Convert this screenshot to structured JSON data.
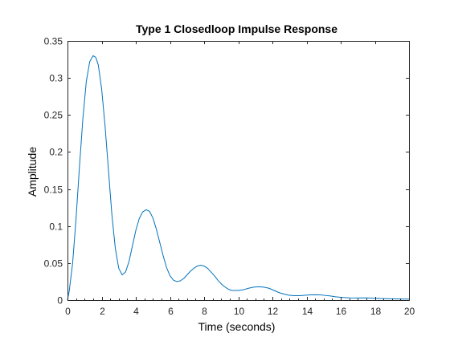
{
  "chart_data": {
    "type": "line",
    "title": "Type 1 Closedloop Impulse Response",
    "xlabel": "Time (seconds)",
    "ylabel": "Amplitude",
    "xlim": [
      0,
      20
    ],
    "ylim": [
      0,
      0.35
    ],
    "x_ticks": [
      0,
      2,
      4,
      6,
      8,
      10,
      12,
      14,
      16,
      18,
      20
    ],
    "x_tick_labels": [
      "0",
      "2",
      "4",
      "6",
      "8",
      "10",
      "12",
      "14",
      "16",
      "18",
      "20"
    ],
    "y_ticks": [
      0,
      0.05,
      0.1,
      0.15,
      0.2,
      0.25,
      0.3,
      0.35
    ],
    "y_tick_labels": [
      "0",
      "0.05",
      "0.1",
      "0.15",
      "0.2",
      "0.25",
      "0.3",
      "0.35"
    ],
    "grid": false,
    "box": true,
    "series": [
      {
        "color": "#0072bd",
        "x": [
          0,
          0.1,
          0.3,
          0.5,
          0.7,
          0.9,
          1.1,
          1.3,
          1.5,
          1.65,
          1.8,
          2.0,
          2.2,
          2.4,
          2.6,
          2.8,
          3.0,
          3.2,
          3.4,
          3.6,
          3.8,
          4.0,
          4.2,
          4.4,
          4.6,
          4.8,
          5.0,
          5.2,
          5.4,
          5.6,
          5.8,
          6.0,
          6.2,
          6.4,
          6.6,
          6.8,
          7.0,
          7.2,
          7.4,
          7.6,
          7.8,
          8.0,
          8.2,
          8.4,
          8.6,
          8.8,
          9.0,
          9.2,
          9.4,
          9.6,
          9.8,
          10.0,
          10.3,
          10.6,
          10.9,
          11.2,
          11.5,
          11.8,
          12.1,
          12.4,
          12.7,
          13.0,
          13.3,
          13.6,
          13.9,
          14.2,
          14.5,
          14.8,
          15.1,
          15.4,
          15.7,
          16.0,
          16.5,
          17.0,
          17.5,
          18.0,
          18.5,
          19.0,
          19.5,
          20.0
        ],
        "y": [
          0,
          0.012,
          0.05,
          0.11,
          0.18,
          0.245,
          0.295,
          0.322,
          0.33,
          0.328,
          0.318,
          0.285,
          0.235,
          0.175,
          0.115,
          0.07,
          0.043,
          0.034,
          0.038,
          0.052,
          0.073,
          0.094,
          0.11,
          0.119,
          0.122,
          0.12,
          0.111,
          0.096,
          0.078,
          0.06,
          0.044,
          0.033,
          0.027,
          0.025,
          0.026,
          0.029,
          0.034,
          0.039,
          0.043,
          0.046,
          0.047,
          0.046,
          0.043,
          0.038,
          0.033,
          0.027,
          0.022,
          0.018,
          0.015,
          0.013,
          0.013,
          0.013,
          0.014,
          0.016,
          0.0175,
          0.018,
          0.0175,
          0.016,
          0.013,
          0.01,
          0.008,
          0.0065,
          0.006,
          0.006,
          0.0065,
          0.007,
          0.0072,
          0.007,
          0.0063,
          0.0055,
          0.0045,
          0.0038,
          0.003,
          0.0028,
          0.003,
          0.0025,
          0.002,
          0.0017,
          0.0015,
          0.0013
        ]
      }
    ]
  },
  "colors": {
    "axis": "#262626",
    "line": "#0072bd",
    "background": "#ffffff"
  }
}
